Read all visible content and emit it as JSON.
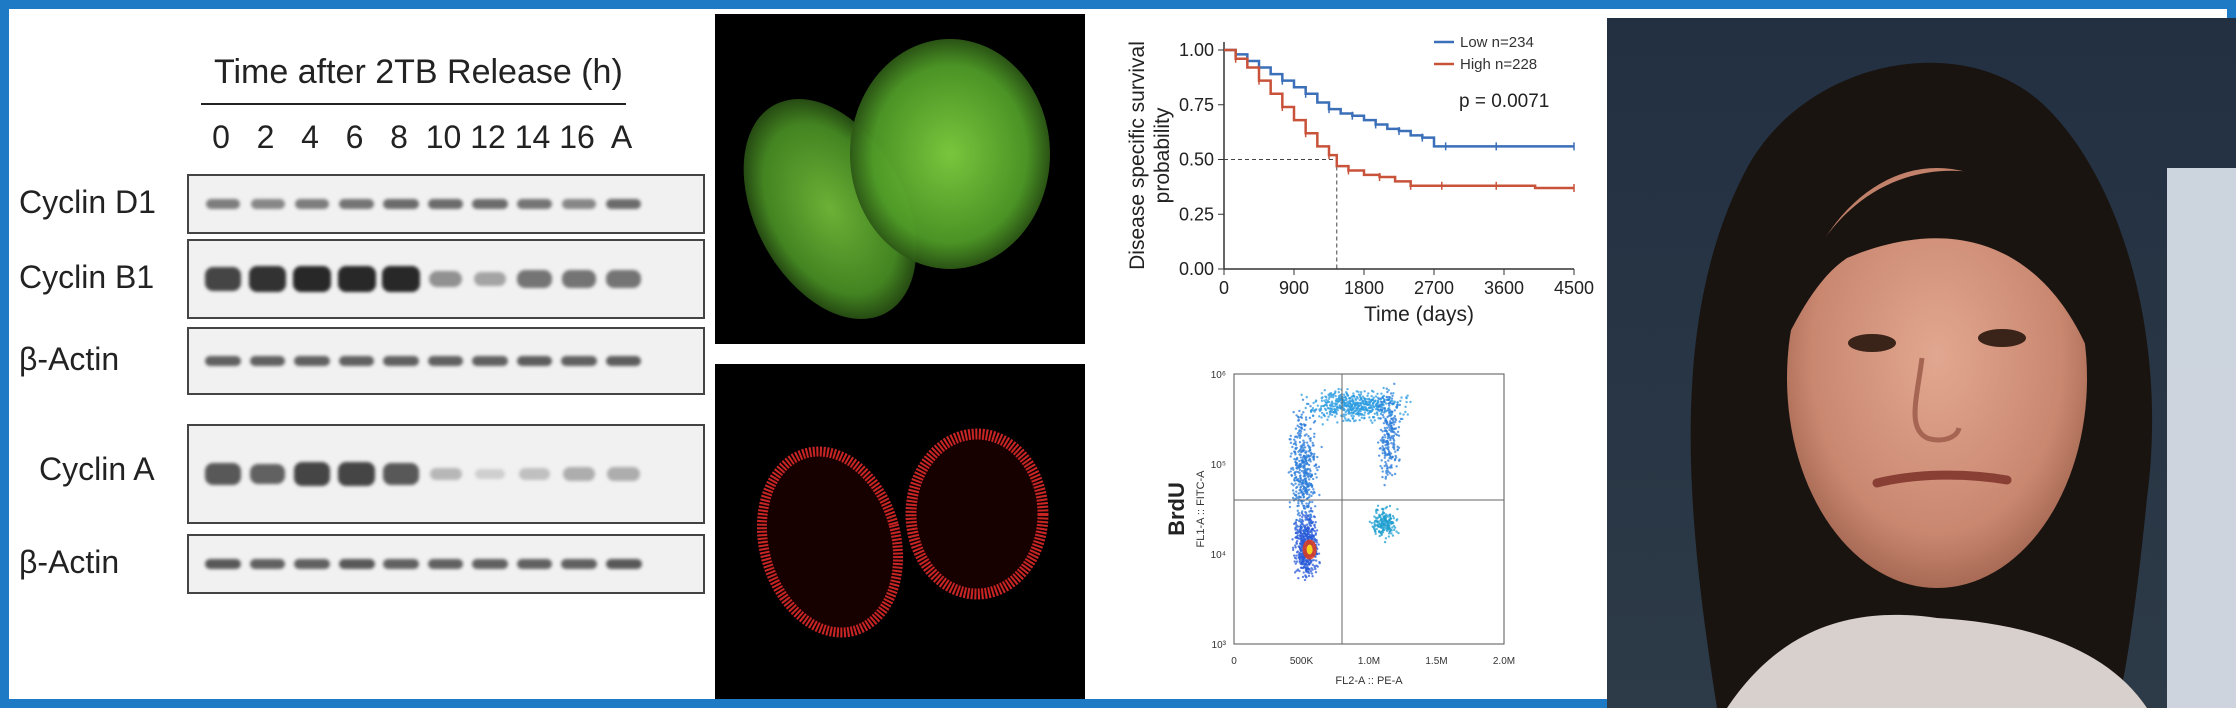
{
  "western_blot": {
    "title": "Time after 2TB Release (h)",
    "lanes": [
      "0",
      "2",
      "4",
      "6",
      "8",
      "10",
      "12",
      "14",
      "16",
      "A"
    ],
    "rows": [
      {
        "label": "Cyclin D1",
        "intensity": [
          0.55,
          0.5,
          0.55,
          0.6,
          0.65,
          0.65,
          0.65,
          0.6,
          0.5,
          0.65
        ]
      },
      {
        "label": "Cyclin B1",
        "intensity": [
          0.85,
          0.95,
          1,
          1,
          1,
          0.45,
          0.35,
          0.6,
          0.6,
          0.6
        ]
      },
      {
        "label": "β-Actin",
        "intensity": [
          0.7,
          0.7,
          0.7,
          0.7,
          0.7,
          0.7,
          0.7,
          0.72,
          0.7,
          0.72
        ]
      },
      {
        "label": "Cyclin A",
        "intensity": [
          0.75,
          0.7,
          0.85,
          0.85,
          0.75,
          0.25,
          0.12,
          0.2,
          0.3,
          0.3
        ]
      },
      {
        "label": "β-Actin",
        "intensity": [
          0.75,
          0.7,
          0.7,
          0.75,
          0.7,
          0.7,
          0.7,
          0.7,
          0.7,
          0.75
        ]
      }
    ]
  },
  "micrographs": {
    "top_color": "#6fbf3a",
    "bottom_color": "#e02a2a"
  },
  "chart_data": [
    {
      "type": "line",
      "title": "",
      "xlabel": "Time (days)",
      "ylabel": "Disease specific survival probability",
      "ylabel_lines": [
        "Disease specific survival",
        "probability"
      ],
      "xlim": [
        0,
        4500
      ],
      "ylim": [
        0,
        1
      ],
      "xticks": [
        "0",
        "900",
        "1800",
        "2700",
        "3600",
        "4500"
      ],
      "yticks": [
        "0.00",
        "0.25",
        "0.50",
        "0.75",
        "1.00"
      ],
      "annotation": "p = 0.0071",
      "median_line": {
        "y": 0.5,
        "x": 1450
      },
      "series": [
        {
          "name": "Low n=234",
          "color": "#3b6fb8",
          "x": [
            0,
            150,
            300,
            450,
            600,
            750,
            900,
            1050,
            1200,
            1350,
            1500,
            1650,
            1800,
            1950,
            2100,
            2250,
            2400,
            2550,
            2700,
            2850,
            3000,
            3500,
            4000,
            4500
          ],
          "values": [
            1.0,
            0.98,
            0.95,
            0.92,
            0.89,
            0.86,
            0.83,
            0.8,
            0.76,
            0.73,
            0.71,
            0.7,
            0.68,
            0.66,
            0.64,
            0.63,
            0.61,
            0.6,
            0.56,
            0.56,
            0.56,
            0.56,
            0.56,
            0.56
          ]
        },
        {
          "name": "High n=228",
          "color": "#c8533a",
          "x": [
            0,
            150,
            300,
            450,
            600,
            750,
            900,
            1050,
            1200,
            1350,
            1450,
            1600,
            1800,
            2000,
            2200,
            2400,
            2600,
            2800,
            3000,
            3500,
            4000,
            4500
          ],
          "values": [
            1.0,
            0.96,
            0.92,
            0.86,
            0.8,
            0.74,
            0.68,
            0.62,
            0.56,
            0.52,
            0.47,
            0.45,
            0.43,
            0.42,
            0.4,
            0.38,
            0.38,
            0.38,
            0.38,
            0.38,
            0.37,
            0.37
          ]
        }
      ]
    },
    {
      "type": "scatter",
      "title": "",
      "xlabel": "FL2-A :: PE-A",
      "ylabel": "FL1-A :: FITC-A",
      "side_label": "BrdU",
      "xticks": [
        "0",
        "500K",
        "1.0M",
        "1.5M",
        "2.0M"
      ],
      "yticks": [
        "10³",
        "10⁴",
        "10⁵",
        "10⁶"
      ],
      "gate": {
        "x": 800000,
        "y_log": 4.6
      }
    }
  ],
  "photo": {
    "description_icon": "person-photo"
  }
}
